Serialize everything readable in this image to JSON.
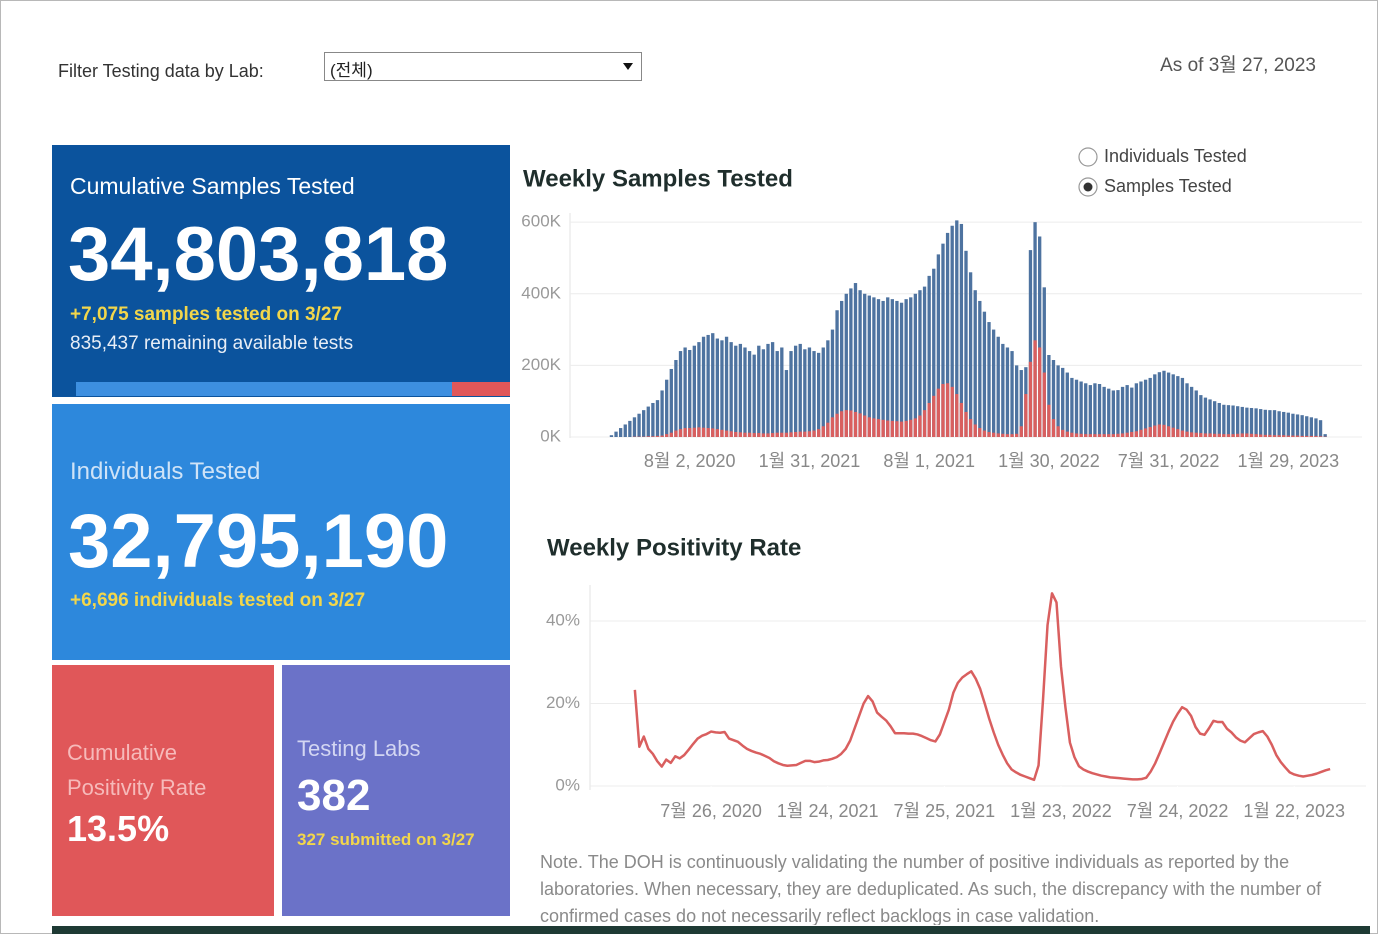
{
  "filter": {
    "label": "Filter Testing data by Lab:",
    "selected": "(전체)"
  },
  "as_of": "As of 3월 27, 2023",
  "tiles": {
    "samples": {
      "title": "Cumulative Samples Tested",
      "number": "34,803,818",
      "highlight": "+7,075 samples tested on 3/27",
      "detail": "835,437 remaining available tests"
    },
    "individuals": {
      "title": "Individuals Tested",
      "number": "32,795,190",
      "highlight": "+6,696  individuals  tested on 3/27"
    },
    "positivity": {
      "title": "Cumulative Positivity Rate",
      "number": "13.5%"
    },
    "labs": {
      "title": "Testing Labs",
      "number": "382",
      "highlight": "327 submitted on 3/27"
    }
  },
  "radio_options": [
    {
      "label": "Individuals Tested",
      "checked": false
    },
    {
      "label": "Samples Tested",
      "checked": true
    }
  ],
  "note": "Note. The DOH is continuously validating the number of positive individuals as reported by the laboratories. When necessary, they are deduplicated. As such, the discrepancy with the number of confirmed cases do not necessarily reflect backlogs in case validation.",
  "chart_data": [
    {
      "type": "bar",
      "title": "Weekly Samples Tested",
      "grid": true,
      "xlim": [
        "2020-02-02",
        "2023-05-21"
      ],
      "xticks": [
        {
          "value": "2020-08-02",
          "label": "8월 2, 2020"
        },
        {
          "value": "2021-01-31",
          "label": "1월 31, 2021"
        },
        {
          "value": "2021-08-01",
          "label": "8월 1, 2021"
        },
        {
          "value": "2022-01-30",
          "label": "1월 30, 2022"
        },
        {
          "value": "2022-07-31",
          "label": "7월 31, 2022"
        },
        {
          "value": "2023-01-29",
          "label": "1월 29, 2023"
        }
      ],
      "ylim": [
        0,
        620000
      ],
      "yticks": [
        {
          "value": 0,
          "label": "0K"
        },
        {
          "value": 200000,
          "label": "200K"
        },
        {
          "value": 400000,
          "label": "400K"
        },
        {
          "value": 600000,
          "label": "600K"
        }
      ],
      "x": [
        "2020-04-05",
        "2020-04-12",
        "2020-04-19",
        "2020-04-26",
        "2020-05-03",
        "2020-05-10",
        "2020-05-17",
        "2020-05-24",
        "2020-05-31",
        "2020-06-07",
        "2020-06-14",
        "2020-06-21",
        "2020-06-28",
        "2020-07-05",
        "2020-07-12",
        "2020-07-19",
        "2020-07-26",
        "2020-08-02",
        "2020-08-09",
        "2020-08-16",
        "2020-08-23",
        "2020-08-30",
        "2020-09-06",
        "2020-09-13",
        "2020-09-20",
        "2020-09-27",
        "2020-10-04",
        "2020-10-11",
        "2020-10-18",
        "2020-10-25",
        "2020-11-01",
        "2020-11-08",
        "2020-11-15",
        "2020-11-22",
        "2020-11-29",
        "2020-12-06",
        "2020-12-13",
        "2020-12-20",
        "2020-12-27",
        "2021-01-03",
        "2021-01-10",
        "2021-01-17",
        "2021-01-24",
        "2021-01-31",
        "2021-02-07",
        "2021-02-14",
        "2021-02-21",
        "2021-02-28",
        "2021-03-07",
        "2021-03-14",
        "2021-03-21",
        "2021-03-28",
        "2021-04-04",
        "2021-04-11",
        "2021-04-18",
        "2021-04-25",
        "2021-05-02",
        "2021-05-09",
        "2021-05-16",
        "2021-05-23",
        "2021-05-30",
        "2021-06-06",
        "2021-06-13",
        "2021-06-20",
        "2021-06-27",
        "2021-07-04",
        "2021-07-11",
        "2021-07-18",
        "2021-07-25",
        "2021-08-01",
        "2021-08-08",
        "2021-08-15",
        "2021-08-22",
        "2021-08-29",
        "2021-09-05",
        "2021-09-12",
        "2021-09-19",
        "2021-09-26",
        "2021-10-03",
        "2021-10-10",
        "2021-10-17",
        "2021-10-24",
        "2021-10-31",
        "2021-11-07",
        "2021-11-14",
        "2021-11-21",
        "2021-11-28",
        "2021-12-05",
        "2021-12-12",
        "2021-12-19",
        "2021-12-26",
        "2022-01-02",
        "2022-01-09",
        "2022-01-16",
        "2022-01-23",
        "2022-01-30",
        "2022-02-06",
        "2022-02-13",
        "2022-02-20",
        "2022-02-27",
        "2022-03-06",
        "2022-03-13",
        "2022-03-20",
        "2022-03-27",
        "2022-04-03",
        "2022-04-10",
        "2022-04-17",
        "2022-04-24",
        "2022-05-01",
        "2022-05-08",
        "2022-05-15",
        "2022-05-22",
        "2022-05-29",
        "2022-06-05",
        "2022-06-12",
        "2022-06-19",
        "2022-06-26",
        "2022-07-03",
        "2022-07-10",
        "2022-07-17",
        "2022-07-24",
        "2022-07-31",
        "2022-08-07",
        "2022-08-14",
        "2022-08-21",
        "2022-08-28",
        "2022-09-04",
        "2022-09-11",
        "2022-09-18",
        "2022-09-25",
        "2022-10-02",
        "2022-10-09",
        "2022-10-16",
        "2022-10-23",
        "2022-10-30",
        "2022-11-06",
        "2022-11-13",
        "2022-11-20",
        "2022-11-27",
        "2022-12-04",
        "2022-12-11",
        "2022-12-18",
        "2022-12-25",
        "2023-01-01",
        "2023-01-08",
        "2023-01-15",
        "2023-01-22",
        "2023-01-29",
        "2023-02-05",
        "2023-02-12",
        "2023-02-19",
        "2023-02-26",
        "2023-03-05",
        "2023-03-12",
        "2023-03-19",
        "2023-03-26"
      ],
      "series": [
        {
          "color": "#4e73a0",
          "values": [
            5000,
            15000,
            25000,
            35000,
            45000,
            55000,
            65000,
            75000,
            85000,
            95000,
            103000,
            130000,
            160000,
            190000,
            215000,
            240000,
            250000,
            243000,
            255000,
            265000,
            280000,
            285000,
            290000,
            275000,
            270000,
            280000,
            265000,
            255000,
            260000,
            250000,
            240000,
            230000,
            255000,
            245000,
            260000,
            265000,
            240000,
            250000,
            187000,
            240000,
            255000,
            260000,
            245000,
            250000,
            240000,
            235000,
            250000,
            270000,
            300000,
            354000,
            380000,
            400000,
            415000,
            430000,
            410000,
            400000,
            395000,
            390000,
            385000,
            380000,
            390000,
            385000,
            380000,
            375000,
            385000,
            390000,
            400000,
            410000,
            420000,
            450000,
            470000,
            510000,
            540000,
            570000,
            590000,
            605000,
            595000,
            520000,
            460000,
            410000,
            380000,
            350000,
            321000,
            300000,
            280000,
            260000,
            250000,
            240000,
            200000,
            187000,
            195000,
            522000,
            600000,
            560000,
            418000,
            229000,
            215000,
            200000,
            193000,
            180000,
            165000,
            160000,
            155000,
            150000,
            145000,
            150000,
            148000,
            140000,
            135000,
            130000,
            131000,
            140000,
            145000,
            138000,
            150000,
            155000,
            160000,
            165000,
            175000,
            181000,
            185000,
            180000,
            175000,
            170000,
            165000,
            150000,
            140000,
            130000,
            117000,
            110000,
            105000,
            100000,
            95000,
            90000,
            89000,
            88000,
            86000,
            84000,
            82000,
            81000,
            80000,
            78000,
            76000,
            75000,
            75000,
            72000,
            70000,
            68000,
            65000,
            63000,
            61000,
            58000,
            55000,
            52000,
            47000,
            8000
          ]
        },
        {
          "color": "#d95f5f",
          "values": [
            0,
            0,
            0,
            0,
            0,
            1000,
            1000,
            1000,
            2000,
            2000,
            3000,
            4000,
            8000,
            12000,
            18000,
            22000,
            25000,
            25000,
            26000,
            27000,
            26000,
            25000,
            24000,
            22000,
            20000,
            18000,
            16000,
            14000,
            13000,
            12000,
            12000,
            11000,
            11000,
            10000,
            10000,
            11000,
            12000,
            12000,
            12000,
            13000,
            14000,
            15000,
            15000,
            16000,
            18000,
            22000,
            30000,
            40000,
            55000,
            65000,
            72000,
            75000,
            74000,
            70000,
            66000,
            60000,
            55000,
            52000,
            50000,
            48000,
            46000,
            45000,
            44000,
            43000,
            45000,
            48000,
            52000,
            60000,
            75000,
            95000,
            115000,
            135000,
            148000,
            150000,
            140000,
            120000,
            95000,
            70000,
            50000,
            35000,
            25000,
            18000,
            14000,
            12000,
            10000,
            9000,
            8000,
            8000,
            9000,
            30000,
            120000,
            210000,
            270000,
            250000,
            180000,
            90000,
            50000,
            30000,
            20000,
            15000,
            12000,
            10000,
            9000,
            8000,
            8000,
            8000,
            8000,
            8000,
            8000,
            8000,
            9000,
            10000,
            12000,
            14000,
            16000,
            20000,
            24000,
            28000,
            32000,
            35000,
            34000,
            30000,
            26000,
            22000,
            18000,
            15000,
            13000,
            12000,
            11000,
            10000,
            10000,
            9000,
            9000,
            8000,
            8000,
            8000,
            9000,
            10000,
            10000,
            9000,
            8000,
            7000,
            6000,
            6000,
            5000,
            5000,
            5000,
            4000,
            4000,
            4000,
            3000,
            3000,
            3000,
            3000,
            2000,
            1000
          ]
        }
      ]
    },
    {
      "type": "line",
      "title": "Weekly Positivity Rate",
      "grid": true,
      "color": "#d95f5f",
      "xlim": [
        "2020-01-19",
        "2023-05-14"
      ],
      "xticks": [
        {
          "value": "2020-07-26",
          "label": "7월 26, 2020"
        },
        {
          "value": "2021-01-24",
          "label": "1월 24, 2021"
        },
        {
          "value": "2021-07-25",
          "label": "7월 25, 2021"
        },
        {
          "value": "2022-01-23",
          "label": "1월 23, 2022"
        },
        {
          "value": "2022-07-24",
          "label": "7월 24, 2022"
        },
        {
          "value": "2023-01-22",
          "label": "1월 22, 2023"
        }
      ],
      "ylim": [
        0,
        48
      ],
      "yticks": [
        {
          "value": 0,
          "label": "0%"
        },
        {
          "value": 20,
          "label": "20%"
        },
        {
          "value": 40,
          "label": "40%"
        }
      ],
      "x": [
        "2020-03-29",
        "2020-04-05",
        "2020-04-12",
        "2020-04-19",
        "2020-04-26",
        "2020-05-03",
        "2020-05-10",
        "2020-05-17",
        "2020-05-24",
        "2020-05-31",
        "2020-06-07",
        "2020-06-14",
        "2020-06-21",
        "2020-06-28",
        "2020-07-05",
        "2020-07-12",
        "2020-07-19",
        "2020-07-26",
        "2020-08-02",
        "2020-08-09",
        "2020-08-16",
        "2020-08-23",
        "2020-08-30",
        "2020-09-06",
        "2020-09-13",
        "2020-09-20",
        "2020-09-27",
        "2020-10-04",
        "2020-10-11",
        "2020-10-18",
        "2020-10-25",
        "2020-11-01",
        "2020-11-08",
        "2020-11-15",
        "2020-11-22",
        "2020-11-29",
        "2020-12-06",
        "2020-12-13",
        "2020-12-20",
        "2020-12-27",
        "2021-01-03",
        "2021-01-10",
        "2021-01-17",
        "2021-01-24",
        "2021-01-31",
        "2021-02-07",
        "2021-02-14",
        "2021-02-21",
        "2021-02-28",
        "2021-03-07",
        "2021-03-14",
        "2021-03-21",
        "2021-03-28",
        "2021-04-04",
        "2021-04-11",
        "2021-04-18",
        "2021-04-25",
        "2021-05-02",
        "2021-05-09",
        "2021-05-16",
        "2021-05-23",
        "2021-05-30",
        "2021-06-06",
        "2021-06-13",
        "2021-06-20",
        "2021-06-27",
        "2021-07-04",
        "2021-07-11",
        "2021-07-18",
        "2021-07-25",
        "2021-08-01",
        "2021-08-08",
        "2021-08-15",
        "2021-08-22",
        "2021-08-29",
        "2021-09-05",
        "2021-09-12",
        "2021-09-19",
        "2021-09-26",
        "2021-10-03",
        "2021-10-10",
        "2021-10-17",
        "2021-10-24",
        "2021-10-31",
        "2021-11-07",
        "2021-11-14",
        "2021-11-21",
        "2021-11-28",
        "2021-12-05",
        "2021-12-12",
        "2021-12-19",
        "2021-12-26",
        "2022-01-02",
        "2022-01-09",
        "2022-01-16",
        "2022-01-23",
        "2022-01-30",
        "2022-02-06",
        "2022-02-13",
        "2022-02-20",
        "2022-02-27",
        "2022-03-06",
        "2022-03-13",
        "2022-03-20",
        "2022-03-27",
        "2022-04-03",
        "2022-04-10",
        "2022-04-17",
        "2022-04-24",
        "2022-05-01",
        "2022-05-08",
        "2022-05-15",
        "2022-05-22",
        "2022-05-29",
        "2022-06-05",
        "2022-06-12",
        "2022-06-19",
        "2022-06-26",
        "2022-07-03",
        "2022-07-10",
        "2022-07-17",
        "2022-07-24",
        "2022-07-31",
        "2022-08-07",
        "2022-08-14",
        "2022-08-21",
        "2022-08-28",
        "2022-09-04",
        "2022-09-11",
        "2022-09-18",
        "2022-09-25",
        "2022-10-02",
        "2022-10-09",
        "2022-10-16",
        "2022-10-23",
        "2022-10-30",
        "2022-11-06",
        "2022-11-13",
        "2022-11-20",
        "2022-11-27",
        "2022-12-04",
        "2022-12-11",
        "2022-12-18",
        "2022-12-25",
        "2023-01-01",
        "2023-01-08",
        "2023-01-15",
        "2023-01-22",
        "2023-01-29",
        "2023-02-05",
        "2023-02-12",
        "2023-02-19",
        "2023-02-26",
        "2023-03-05",
        "2023-03-12",
        "2023-03-19"
      ],
      "values": [
        23.3,
        9.5,
        12,
        9,
        7.8,
        6,
        4.7,
        6.4,
        5.6,
        7.2,
        6.7,
        7.5,
        8.8,
        10.2,
        11.5,
        12.2,
        12.6,
        13.2,
        13,
        12.9,
        13.1,
        11.5,
        11.1,
        10.7,
        9.8,
        9,
        8.5,
        8.1,
        7.8,
        7.3,
        6.8,
        6,
        5.5,
        5.1,
        4.9,
        5,
        5.1,
        5.6,
        6.1,
        6.1,
        5.8,
        5.9,
        6.2,
        6.3,
        6.6,
        7,
        7.8,
        9,
        11,
        14,
        17,
        20,
        21.8,
        20.5,
        17.8,
        16.8,
        15.9,
        14.5,
        12.8,
        12.8,
        12.8,
        12.7,
        12.7,
        12.5,
        12.1,
        11.6,
        11.1,
        10.8,
        12.5,
        15.5,
        18.5,
        22.6,
        25,
        26.3,
        27.1,
        27.8,
        26,
        23.5,
        20,
        16.3,
        13,
        10,
        7.6,
        5.5,
        4,
        3.3,
        2.7,
        2.3,
        1.9,
        1.5,
        5,
        21,
        39,
        46.7,
        44.5,
        29,
        19,
        10.5,
        7,
        4.8,
        4,
        3.5,
        3.1,
        2.8,
        2.5,
        2.3,
        2.1,
        2,
        1.9,
        1.8,
        1.7,
        1.6,
        1.6,
        1.7,
        2,
        3.5,
        5.5,
        8,
        10.6,
        13.2,
        15.6,
        17.5,
        19.1,
        18.5,
        17,
        14.3,
        12.7,
        12.4,
        14,
        15.8,
        15.5,
        15.5,
        13.9,
        13,
        11.8,
        11,
        10.6,
        11.6,
        12.6,
        13,
        13.3,
        12,
        10,
        7.5,
        5.8,
        4.5,
        3.3,
        2.8,
        2.5,
        2.3,
        2.5,
        2.7,
        3,
        3.4,
        3.8,
        4.1
      ]
    }
  ]
}
